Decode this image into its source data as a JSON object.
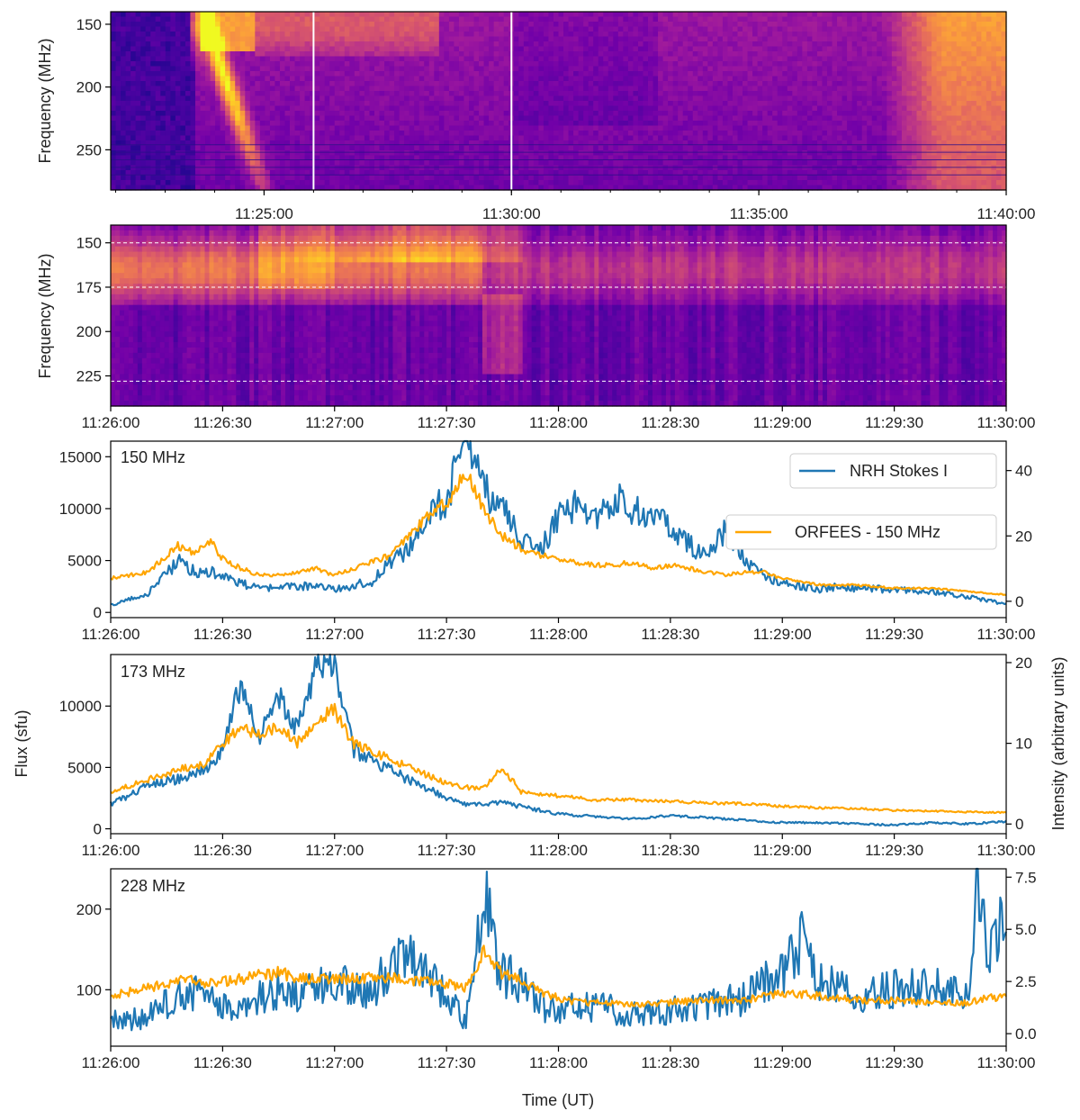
{
  "colors": {
    "nrh": "#1f77b4",
    "orfees": "#ffa500",
    "cmap": [
      "#0d0887",
      "#46039f",
      "#7201a8",
      "#9c179e",
      "#bd3786",
      "#d8576b",
      "#ed7953",
      "#fb9f3a",
      "#fdca26",
      "#f0f921"
    ]
  },
  "chart_data": [
    {
      "type": "heatmap",
      "name": "spectrogram-overview",
      "ylabel": "Frequency (MHz)",
      "y_range_mhz": [
        140,
        282
      ],
      "yticks": [
        "150",
        "200",
        "250"
      ],
      "x_range_minutes": [
        -4.1,
        14.0
      ],
      "xticks": [
        {
          "t_min": -1,
          "label": "11:25:00"
        },
        {
          "t_min": 4,
          "label": "11:30:00"
        },
        {
          "t_min": 9,
          "label": "11:35:00"
        },
        {
          "t_min": 14,
          "label": "11:40:00"
        }
      ],
      "marker_lines_min": [
        0,
        4
      ],
      "features": [
        {
          "name": "type-II-drift-burst",
          "start_min": -2.2,
          "end_min": -1.3,
          "freq_start_mhz": 150,
          "freq_end_mhz": 245,
          "intensity": 0.95
        },
        {
          "name": "late-bright-emission",
          "start_min": 11.5,
          "end_min": 14.0,
          "freq_start_mhz": 140,
          "freq_end_mhz": 282,
          "intensity": 0.75
        }
      ]
    },
    {
      "type": "heatmap",
      "name": "spectrogram-zoom",
      "ylabel": "Frequency (MHz)",
      "y_range_mhz": [
        140,
        242
      ],
      "yticks": [
        "150",
        "175",
        "200",
        "225"
      ],
      "x_range_seconds": [
        0,
        240
      ],
      "xticks": [
        "11:26:00",
        "11:26:30",
        "11:27:00",
        "11:27:30",
        "11:28:00",
        "11:28:30",
        "11:29:00",
        "11:29:30",
        "11:30:00"
      ],
      "dashed_lines_mhz": [
        150,
        175,
        228
      ]
    },
    {
      "type": "line",
      "name": "flux-150",
      "annotation": "150 MHz",
      "x_range_seconds": [
        0,
        240
      ],
      "xticks": [
        "11:26:00",
        "11:26:30",
        "11:27:00",
        "11:27:30",
        "11:28:00",
        "11:28:30",
        "11:29:00",
        "11:29:30",
        "11:30:00"
      ],
      "ylim_left": [
        -500,
        16500
      ],
      "yticks_left": [
        "0",
        "5000",
        "10000",
        "15000"
      ],
      "ylim_right": [
        -5,
        49
      ],
      "yticks_right": [
        "0",
        "20",
        "40"
      ],
      "legend": [
        "NRH Stokes I",
        "ORFEES - 150 MHz"
      ],
      "legend_position": "top-right",
      "series": [
        {
          "name": "NRH Stokes I",
          "axis": "left",
          "t": [
            0,
            10,
            18,
            22,
            27,
            30,
            35,
            40,
            45,
            55,
            60,
            70,
            75,
            80,
            85,
            90,
            95,
            100,
            105,
            110,
            115,
            120,
            125,
            130,
            135,
            140,
            145,
            150,
            155,
            160,
            165,
            170,
            175,
            180,
            185,
            190,
            195,
            200,
            210,
            220,
            230,
            240
          ],
          "v": [
            700,
            1800,
            5000,
            4000,
            4000,
            3500,
            2800,
            2200,
            2400,
            2600,
            2200,
            3000,
            5000,
            6000,
            9000,
            11000,
            16000,
            12000,
            10000,
            7000,
            6000,
            9000,
            10500,
            9000,
            11000,
            10000,
            9500,
            8000,
            6500,
            5500,
            8000,
            5000,
            3500,
            3000,
            2500,
            2200,
            2500,
            2300,
            2200,
            2000,
            1500,
            800
          ]
        },
        {
          "name": "ORFEES - 150 MHz",
          "axis": "right",
          "t": [
            0,
            10,
            18,
            22,
            27,
            30,
            35,
            40,
            45,
            55,
            60,
            70,
            75,
            80,
            85,
            90,
            95,
            100,
            105,
            110,
            115,
            120,
            125,
            130,
            135,
            140,
            145,
            150,
            155,
            160,
            165,
            170,
            175,
            180,
            185,
            190,
            195,
            200,
            210,
            220,
            230,
            240
          ],
          "v": [
            7,
            9,
            17,
            15,
            18,
            13,
            10,
            8,
            8,
            10,
            8,
            12,
            14,
            20,
            26,
            30,
            40,
            28,
            20,
            16,
            14,
            13,
            12,
            11,
            11,
            12,
            10,
            11,
            10,
            9,
            8,
            9,
            9,
            7,
            6,
            5,
            5,
            5,
            4,
            4,
            3,
            2
          ]
        }
      ]
    },
    {
      "type": "line",
      "name": "flux-173",
      "annotation": "173 MHz",
      "x_range_seconds": [
        0,
        240
      ],
      "xticks": [
        "11:26:00",
        "11:26:30",
        "11:27:00",
        "11:27:30",
        "11:28:00",
        "11:28:30",
        "11:29:00",
        "11:29:30",
        "11:30:00"
      ],
      "ylabel_left": "Flux (sfu)",
      "ylim_left": [
        -400,
        14200
      ],
      "yticks_left": [
        "0",
        "5000",
        "10000"
      ],
      "ylabel_right": "Intensity (arbitrary units)",
      "ylim_right": [
        -1.2,
        21
      ],
      "yticks_right": [
        "0",
        "10",
        "20"
      ],
      "series": [
        {
          "name": "NRH Stokes I",
          "axis": "left",
          "t": [
            0,
            10,
            20,
            25,
            30,
            35,
            40,
            45,
            50,
            55,
            60,
            65,
            70,
            80,
            90,
            95,
            100,
            105,
            110,
            120,
            130,
            140,
            150,
            160,
            170,
            180,
            190,
            200,
            210,
            220,
            230,
            240
          ],
          "v": [
            2000,
            3500,
            4200,
            4800,
            6500,
            12000,
            7500,
            11000,
            8000,
            13000,
            13500,
            6500,
            5500,
            4000,
            2500,
            2000,
            2000,
            2200,
            1800,
            1200,
            1000,
            800,
            1100,
            900,
            700,
            500,
            500,
            400,
            300,
            500,
            400,
            600
          ]
        },
        {
          "name": "ORFEES - 150 MHz",
          "axis": "right",
          "t": [
            0,
            10,
            20,
            25,
            30,
            35,
            40,
            45,
            50,
            55,
            60,
            65,
            70,
            80,
            90,
            95,
            100,
            105,
            110,
            120,
            130,
            140,
            150,
            160,
            170,
            180,
            190,
            200,
            210,
            220,
            230,
            240
          ],
          "v": [
            4,
            5.5,
            7,
            7.5,
            10,
            12,
            11,
            12,
            10,
            13,
            14,
            10,
            9,
            7,
            5,
            4.5,
            4.5,
            7,
            4,
            3.5,
            3,
            3,
            2.8,
            2.6,
            2.5,
            2.2,
            2,
            1.9,
            1.7,
            1.6,
            1.5,
            1.4
          ]
        }
      ]
    },
    {
      "type": "line",
      "name": "flux-228",
      "annotation": "228 MHz",
      "x_range_seconds": [
        0,
        240
      ],
      "xticks": [
        "11:26:00",
        "11:26:30",
        "11:27:00",
        "11:27:30",
        "11:28:00",
        "11:28:30",
        "11:29:00",
        "11:29:30",
        "11:30:00"
      ],
      "xlabel": "Time (UT)",
      "ylim_left": [
        30,
        250
      ],
      "yticks_left": [
        "100",
        "200"
      ],
      "ylim_right": [
        -0.6,
        7.9
      ],
      "yticks_right": [
        "0.0",
        "2.5",
        "5.0",
        "7.5"
      ],
      "series": [
        {
          "name": "NRH Stokes I",
          "axis": "left",
          "t": [
            0,
            10,
            20,
            25,
            30,
            35,
            40,
            45,
            50,
            55,
            60,
            70,
            80,
            83,
            90,
            95,
            98,
            100,
            103,
            105,
            110,
            115,
            120,
            125,
            130,
            140,
            150,
            160,
            170,
            175,
            180,
            185,
            190,
            200,
            210,
            220,
            225,
            230,
            232,
            235,
            240
          ],
          "v": [
            60,
            65,
            100,
            90,
            80,
            70,
            90,
            100,
            95,
            100,
            110,
            100,
            160,
            120,
            100,
            60,
            150,
            230,
            140,
            120,
            110,
            80,
            70,
            80,
            80,
            70,
            75,
            80,
            90,
            110,
            120,
            160,
            110,
            95,
            100,
            105,
            95,
            90,
            240,
            140,
            190
          ]
        },
        {
          "name": "ORFEES - 150 MHz",
          "axis": "right",
          "t": [
            0,
            10,
            20,
            25,
            30,
            35,
            40,
            45,
            50,
            55,
            60,
            70,
            80,
            83,
            90,
            95,
            98,
            100,
            103,
            105,
            110,
            115,
            120,
            125,
            130,
            140,
            150,
            160,
            170,
            175,
            180,
            185,
            190,
            200,
            210,
            220,
            225,
            230,
            232,
            235,
            240
          ],
          "v": [
            1.8,
            2.2,
            2.6,
            2.4,
            2.5,
            2.6,
            2.8,
            2.9,
            2.7,
            2.6,
            2.6,
            2.7,
            2.6,
            2.5,
            2.4,
            2.2,
            3,
            4,
            3.2,
            2.9,
            2.5,
            2,
            1.7,
            1.5,
            1.5,
            1.4,
            1.5,
            1.6,
            1.6,
            1.8,
            1.9,
            1.9,
            1.8,
            1.6,
            1.6,
            1.5,
            1.5,
            1.5,
            1.6,
            1.7,
            1.8
          ]
        }
      ]
    }
  ]
}
